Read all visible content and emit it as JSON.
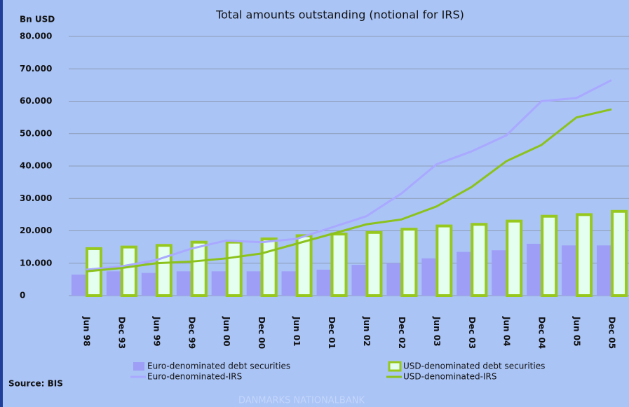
{
  "chart_data": {
    "type": "combo",
    "title": "Total amounts outstanding (notional for IRS)",
    "y_label": "Bn USD",
    "source": "Source: BIS",
    "footer": "DANMARKS NATIONALBANK",
    "categories": [
      "Jun 98",
      "Dec 93",
      "Jun 99",
      "Dec 99",
      "Jun 00",
      "Dec 00",
      "Jun 01",
      "Dec 01",
      "Jun 02",
      "Dec 02",
      "Jun 03",
      "Dec 03",
      "Jun 04",
      "Dec 04",
      "Jun 05",
      "Dec 05"
    ],
    "series": [
      {
        "name": "Euro-denominated debt securities",
        "type": "bar",
        "color": "#9e9ef6",
        "values": [
          6500,
          7500,
          7000,
          7500,
          7500,
          7500,
          7500,
          8000,
          9500,
          10000,
          11500,
          13500,
          14000,
          16000,
          15500,
          15500
        ]
      },
      {
        "name": "USD-denominated debt securities",
        "type": "bar",
        "color": "#96c81e",
        "values": [
          14500,
          15000,
          15500,
          16500,
          16500,
          17500,
          18500,
          19000,
          19500,
          20500,
          21500,
          22000,
          23000,
          24500,
          25000,
          26000
        ]
      },
      {
        "name": "Euro-denominated-IRS",
        "type": "line",
        "color": "#a9a9ff",
        "values": [
          8000,
          9000,
          11000,
          14500,
          17000,
          16500,
          17500,
          21000,
          24500,
          31500,
          40500,
          44500,
          49500,
          60000,
          61000,
          66500
        ]
      },
      {
        "name": "USD-denominated-IRS",
        "type": "line",
        "color": "#8cc21c",
        "values": [
          7500,
          8500,
          10000,
          10500,
          11500,
          13000,
          16000,
          19000,
          22000,
          23500,
          27500,
          33500,
          41500,
          46500,
          55000,
          57500
        ]
      }
    ],
    "ylim": [
      0,
      80000
    ],
    "yticks": [
      {
        "value": 0,
        "label": "0"
      },
      {
        "value": 10000,
        "label": "10.000"
      },
      {
        "value": 20000,
        "label": "20.000"
      },
      {
        "value": 30000,
        "label": "30.000"
      },
      {
        "value": 40000,
        "label": "40.000"
      },
      {
        "value": 50000,
        "label": "50.000"
      },
      {
        "value": 60000,
        "label": "60.000"
      },
      {
        "value": 70000,
        "label": "70.000"
      },
      {
        "value": 80000,
        "label": "80.000"
      }
    ],
    "grid": true
  }
}
